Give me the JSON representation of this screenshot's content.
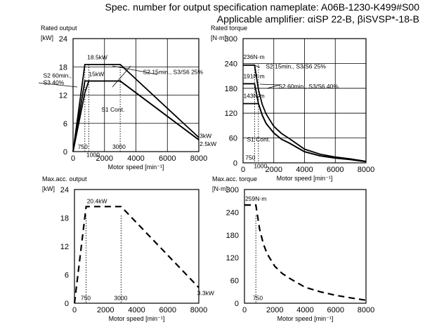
{
  "header": {
    "spec_line": "Spec. number for output specification nameplate: A06B-1230-K499#S00",
    "amp_line": "Applicable amplifier: αiSP 22-B, βiSVSP*-18-B"
  },
  "chart_data": [
    {
      "id": "rated_output",
      "type": "line",
      "title": "Rated output",
      "unit_label": "[kW]",
      "xlabel": "Motor speed [min⁻¹]",
      "xlim": [
        0,
        8000
      ],
      "ylim": [
        0,
        24
      ],
      "xticks": [
        0,
        2000,
        4000,
        6000,
        8000
      ],
      "yticks": [
        0,
        6,
        12,
        18,
        24
      ],
      "grid": true,
      "series": [
        {
          "name": "S2 15min., S3/S6 25%",
          "style": "solid",
          "x": [
            0,
            750,
            1000,
            3000,
            8000
          ],
          "y": [
            0,
            18.5,
            18.5,
            18.5,
            3
          ]
        },
        {
          "name": "S2 60min., S3 40%",
          "style": "solid",
          "x": [
            0,
            750,
            1000,
            3000,
            8000
          ],
          "y": [
            0,
            15,
            15,
            15,
            2.5
          ]
        },
        {
          "name": "S1 Cont.",
          "style": "solid",
          "x": [
            0,
            750,
            1000,
            3000,
            8000
          ],
          "y": [
            0,
            12.5,
            15,
            15,
            2.5
          ]
        }
      ],
      "annotations": [
        {
          "text": "18.5kW",
          "x": 900,
          "y": 19.6
        },
        {
          "text": "15kW",
          "x": 1000,
          "y": 16
        },
        {
          "text": "S2 15min., S3/S6 25%",
          "x": 4450,
          "y": 16.5
        },
        {
          "text": "S2 60min.,",
          "x": -1900,
          "y": 15.7
        },
        {
          "text": "S3 40%",
          "x": -1900,
          "y": 14.2
        },
        {
          "text": "S1 Cont.",
          "x": 1800,
          "y": 8.5
        },
        {
          "text": "3kW",
          "x": 8050,
          "y": 2.9
        },
        {
          "text": "2.5kW",
          "x": 8050,
          "y": 1.2
        },
        {
          "text": "750",
          "x": 300,
          "y": 0.6
        },
        {
          "text": "1000",
          "x": 850,
          "y": -1.1
        },
        {
          "text": "3000",
          "x": 2500,
          "y": 0.6
        }
      ],
      "guides": [
        750,
        1000,
        3000
      ]
    },
    {
      "id": "rated_torque",
      "type": "line",
      "title": "Rated torque",
      "unit_label": "[N·m]",
      "xlabel": "Motor speed [min⁻¹]",
      "xlim": [
        0,
        8000
      ],
      "ylim": [
        0,
        300
      ],
      "xticks": [
        0,
        2000,
        4000,
        6000,
        8000
      ],
      "yticks": [
        0,
        60,
        120,
        180,
        240,
        300
      ],
      "grid": true,
      "series": [
        {
          "name": "S2 15min., S3/S6 25%",
          "style": "solid",
          "x": [
            0,
            750,
            1000,
            1250,
            1500,
            2000,
            2500,
            3000,
            4000,
            5000,
            6000,
            7000,
            8000
          ],
          "y": [
            236,
            236,
            177,
            141,
            118,
            88,
            71,
            59,
            33,
            21,
            14,
            9.5,
            3.6
          ]
        },
        {
          "name": "S2 60min., S3/S6 40%",
          "style": "solid",
          "x": [
            0,
            750,
            1000,
            1250,
            1500,
            2000,
            2500,
            3000,
            4000,
            5000,
            6000,
            7000,
            8000
          ],
          "y": [
            191,
            191,
            143,
            115,
            95,
            72,
            57,
            48,
            27,
            17,
            11.5,
            7.8,
            3
          ]
        },
        {
          "name": "S1 Cont.",
          "style": "solid",
          "x": [
            0,
            750,
            1000,
            1250,
            1500,
            2000,
            2500,
            3000,
            4000,
            5000,
            6000,
            7000,
            8000
          ],
          "y": [
            143,
            143,
            143,
            115,
            95,
            72,
            57,
            48,
            27,
            17,
            11.5,
            7.8,
            3
          ]
        }
      ],
      "annotations": [
        {
          "text": "236N·m",
          "x": 20,
          "y": 251
        },
        {
          "text": "S2 15min., S3/S6 25%",
          "x": 1480,
          "y": 228
        },
        {
          "text": "191N·m",
          "x": 20,
          "y": 204
        },
        {
          "text": "S2 60min., S3/S6 40%",
          "x": 2300,
          "y": 180
        },
        {
          "text": "143N·m",
          "x": 20,
          "y": 157
        },
        {
          "text": "S1 Cont.",
          "x": 250,
          "y": 52
        },
        {
          "text": "750",
          "x": 150,
          "y": 8
        },
        {
          "text": "1000",
          "x": 700,
          "y": -13
        }
      ],
      "guides": [
        750,
        1000
      ]
    },
    {
      "id": "max_acc_output",
      "type": "line",
      "title": "Max.acc. output",
      "unit_label": "[kW]",
      "xlabel": "Motor speed [min⁻¹]",
      "xlim": [
        0,
        8000
      ],
      "ylim": [
        0,
        24
      ],
      "xticks": [
        0,
        2000,
        4000,
        6000,
        8000
      ],
      "yticks": [
        0,
        6,
        12,
        18,
        24
      ],
      "grid": false,
      "series": [
        {
          "name": "",
          "style": "dashed",
          "x": [
            0,
            750,
            3000,
            8000
          ],
          "y": [
            0,
            20.4,
            20.4,
            3.3
          ]
        }
      ],
      "annotations": [
        {
          "text": "20.4kW",
          "x": 800,
          "y": 21.1
        },
        {
          "text": "3.3kW",
          "x": 7900,
          "y": 1.7
        },
        {
          "text": "750",
          "x": 400,
          "y": 0.7
        },
        {
          "text": "3000",
          "x": 2550,
          "y": 0.7
        }
      ],
      "guides": [
        750,
        3000
      ]
    },
    {
      "id": "max_acc_torque",
      "type": "line",
      "title": "Max.acc. torque",
      "unit_label": "[N·m]",
      "xlabel": "Motor speed [min⁻¹]",
      "xlim": [
        0,
        8000
      ],
      "ylim": [
        0,
        300
      ],
      "xticks": [
        0,
        2000,
        4000,
        6000,
        8000
      ],
      "yticks": [
        0,
        60,
        120,
        180,
        240,
        300
      ],
      "grid": false,
      "series": [
        {
          "name": "",
          "style": "dashed",
          "x": [
            0,
            750,
            1000,
            1250,
            1500,
            2000,
            2500,
            3000,
            4000,
            5000,
            6000,
            7000,
            8000
          ],
          "y": [
            259,
            259,
            195,
            156,
            130,
            97,
            78,
            65,
            42,
            30,
            21,
            14,
            8
          ]
        }
      ],
      "annotations": [
        {
          "text": "259N·m",
          "x": 50,
          "y": 270
        },
        {
          "text": "750",
          "x": 550,
          "y": 8
        }
      ],
      "guides": [
        750
      ]
    }
  ]
}
